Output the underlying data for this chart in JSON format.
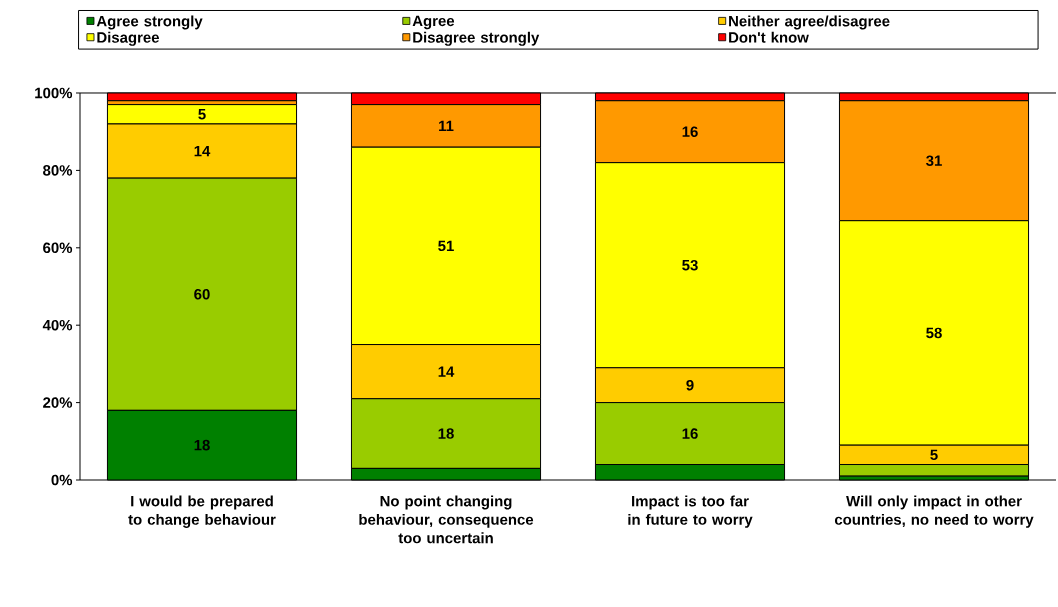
{
  "chart_data": {
    "type": "bar",
    "stacked": true,
    "categories": [
      "I would be prepared to change behaviour",
      "No point changing behaviour, consequence too uncertain",
      "Impact is too far in future to worry",
      "Will only impact in other countries, no need to worry"
    ],
    "series": [
      {
        "name": "Agree strongly",
        "color": "#008000",
        "values": [
          18,
          3,
          4,
          1
        ],
        "value_labels": [
          "18",
          null,
          null,
          null
        ]
      },
      {
        "name": "Agree",
        "color": "#99cc00",
        "values": [
          60,
          18,
          16,
          3
        ],
        "value_labels": [
          "60",
          "18",
          "16",
          null
        ]
      },
      {
        "name": "Neither agree/disagree",
        "color": "#ffcc00",
        "values": [
          14,
          14,
          9,
          5
        ],
        "value_labels": [
          "14",
          "14",
          "9",
          "5"
        ]
      },
      {
        "name": "Disagree",
        "color": "#ffff00",
        "values": [
          5,
          51,
          53,
          58
        ],
        "value_labels": [
          "5",
          "51",
          "53",
          "58"
        ]
      },
      {
        "name": "Disagree strongly",
        "color": "#ff9900",
        "values": [
          1,
          11,
          16,
          31
        ],
        "value_labels": [
          null,
          "11",
          "16",
          "31"
        ]
      },
      {
        "name": "Don't know",
        "color": "#ff0000",
        "values": [
          2,
          3,
          2,
          2
        ],
        "value_labels": [
          null,
          null,
          null,
          null
        ]
      }
    ],
    "ylim": [
      0,
      100
    ],
    "yticks": [
      {
        "value": 0,
        "label": "0%"
      },
      {
        "value": 20,
        "label": "20%"
      },
      {
        "value": 40,
        "label": "40%"
      },
      {
        "value": 60,
        "label": "60%"
      },
      {
        "value": 80,
        "label": "80%"
      },
      {
        "value": 100,
        "label": "100%"
      }
    ],
    "grid": false,
    "legend": "top"
  }
}
